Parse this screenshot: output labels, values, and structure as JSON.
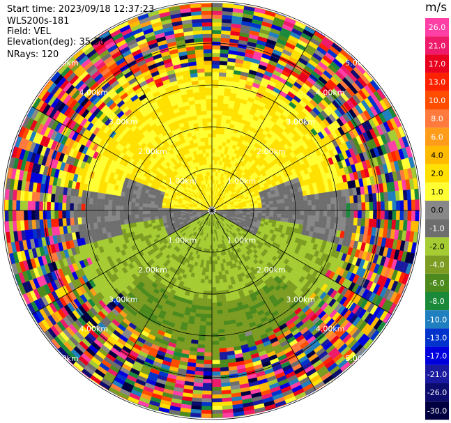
{
  "info": {
    "start_time": "Start time: 2023/09/18 12:37:23",
    "instrument": "WLS200s-181",
    "field": "Field: VEL",
    "elevation": "Elevation(deg): 35.30",
    "nrays": "NRays: 120"
  },
  "colorbar": {
    "unit": "m/s",
    "ticks": [
      "26.0",
      "21.0",
      "17.0",
      "13.0",
      "10.0",
      "8.0",
      "6.0",
      "4.0",
      "2.0",
      "1.0",
      "0.0",
      "-1.0",
      "-2.0",
      "-4.0",
      "-6.0",
      "-8.0",
      "-10.0",
      "-13.0",
      "-17.0",
      "-21.0",
      "-26.0",
      "-30.0"
    ],
    "colors": [
      "#ff3ea6",
      "#ee1a6a",
      "#e8001e",
      "#ff2200",
      "#ff4d00",
      "#ff7a3c",
      "#ff9c1a",
      "#ffbb00",
      "#ffe000",
      "#ffff33",
      "#888888",
      "#6e6e6e",
      "#a6cc33",
      "#7c9c22",
      "#4c8a1e",
      "#1a8a3a",
      "#1f7fbf",
      "#0033cc",
      "#0000dd",
      "#1a1aa0",
      "#0c0c6e",
      "#000040"
    ]
  },
  "range_rings": {
    "labels": [
      "1.00km",
      "2.00km",
      "3.00km",
      "4.00km",
      "5.00km"
    ]
  }
}
